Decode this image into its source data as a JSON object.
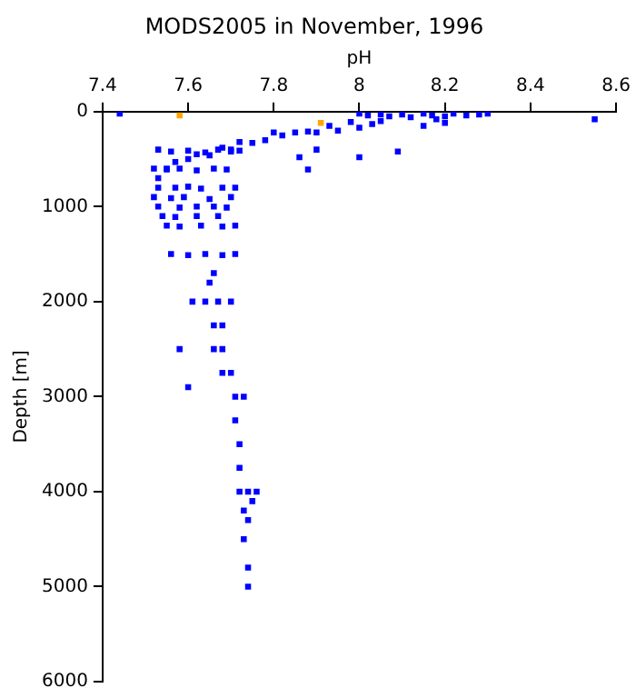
{
  "chart_data": {
    "type": "scatter",
    "title": "MODS2005 in November, 1996",
    "xlabel": "pH",
    "ylabel": "Depth [m]",
    "xlim": [
      7.4,
      8.6
    ],
    "xticks": [
      7.4,
      7.6,
      7.8,
      8,
      8.2,
      8.4,
      8.6
    ],
    "ylim": [
      6000,
      0
    ],
    "yticks": [
      0,
      1000,
      2000,
      3000,
      4000,
      5000,
      6000
    ],
    "grid": false,
    "legend": false,
    "marker": "square",
    "series": [
      {
        "color": "#0000ff",
        "x": [
          7.44,
          8.55,
          8.0,
          8.02,
          8.05,
          8.07,
          8.1,
          8.12,
          8.15,
          8.17,
          8.2,
          8.22,
          8.25,
          8.28,
          8.3,
          8.18,
          8.2,
          8.15,
          8.05,
          8.03,
          8.0,
          7.98,
          7.95,
          7.93,
          7.9,
          7.88,
          7.85,
          7.82,
          7.8,
          7.78,
          7.75,
          7.72,
          7.7,
          7.68,
          7.65,
          7.62,
          7.6,
          7.57,
          7.55,
          7.53,
          8.0,
          7.88,
          8.09,
          7.86,
          7.9,
          7.53,
          7.56,
          7.6,
          7.64,
          7.67,
          7.7,
          7.72,
          7.52,
          7.55,
          7.58,
          7.62,
          7.66,
          7.69,
          7.53,
          7.57,
          7.6,
          7.63,
          7.68,
          7.71,
          7.52,
          7.56,
          7.59,
          7.65,
          7.7,
          7.53,
          7.58,
          7.62,
          7.66,
          7.69,
          7.54,
          7.57,
          7.62,
          7.67,
          7.55,
          7.58,
          7.63,
          7.68,
          7.71,
          7.56,
          7.6,
          7.64,
          7.68,
          7.71,
          7.66,
          7.65,
          7.61,
          7.64,
          7.67,
          7.7,
          7.66,
          7.68,
          7.58,
          7.66,
          7.68,
          7.68,
          7.7,
          7.6,
          7.71,
          7.73,
          7.71,
          7.72,
          7.72,
          7.72,
          7.74,
          7.76,
          7.73,
          7.74,
          7.73,
          7.74,
          7.74,
          7.75
        ],
        "values": [
          20,
          80,
          20,
          40,
          30,
          50,
          30,
          60,
          20,
          40,
          50,
          20,
          40,
          30,
          20,
          80,
          120,
          150,
          100,
          130,
          170,
          110,
          200,
          150,
          220,
          210,
          220,
          250,
          220,
          300,
          330,
          320,
          400,
          380,
          460,
          450,
          500,
          530,
          600,
          700,
          480,
          610,
          420,
          480,
          400,
          400,
          420,
          410,
          430,
          400,
          420,
          410,
          600,
          610,
          600,
          620,
          600,
          610,
          800,
          800,
          790,
          810,
          800,
          800,
          900,
          910,
          900,
          920,
          900,
          1000,
          1010,
          1000,
          1000,
          1010,
          1100,
          1110,
          1100,
          1100,
          1200,
          1210,
          1200,
          1210,
          1200,
          1500,
          1510,
          1500,
          1510,
          1500,
          1700,
          1800,
          2000,
          2000,
          2000,
          2000,
          2250,
          2250,
          2500,
          2500,
          2500,
          2750,
          2750,
          2900,
          3000,
          3000,
          3250,
          3500,
          3750,
          4000,
          4000,
          4000,
          4200,
          4300,
          4500,
          4800,
          5000,
          4100
        ]
      },
      {
        "color": "#ffa500",
        "x": [
          7.58,
          7.91
        ],
        "values": [
          40,
          120
        ]
      }
    ]
  }
}
